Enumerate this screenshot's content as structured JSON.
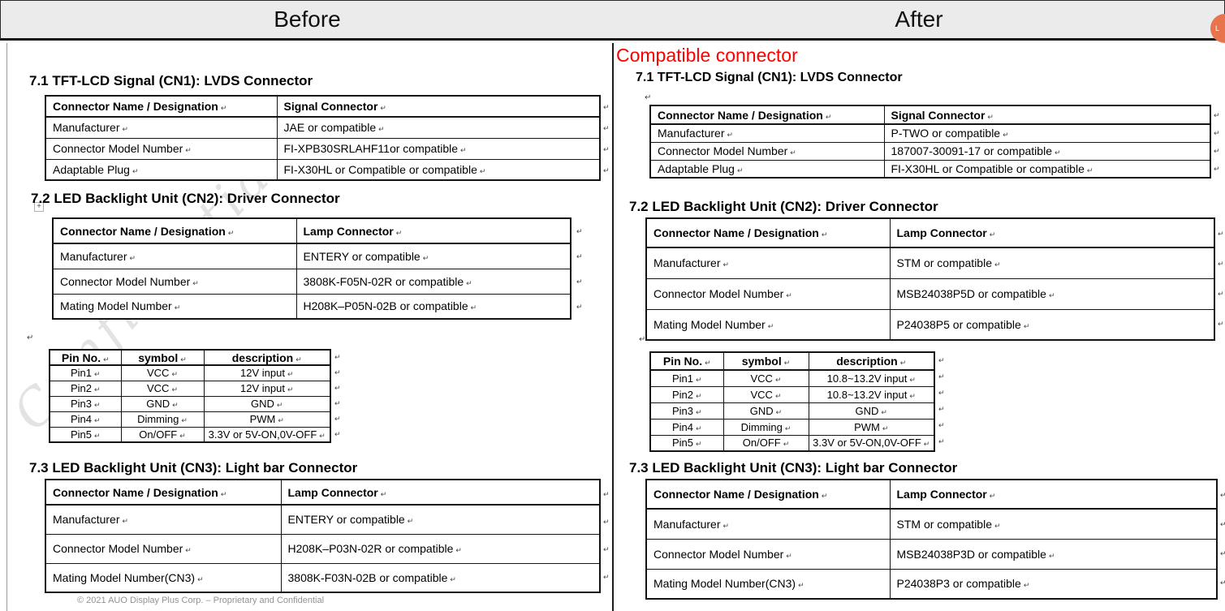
{
  "glyphs": {
    "eol": "↵",
    "handle_plus": "+"
  },
  "colors": {
    "header_bg": "#ebebeb",
    "changed_text_blue": "#2323e8",
    "annotation_red": "#fe0000",
    "floating_button_orange": "#e8744d",
    "watermark_gray": "#c9c9c9"
  },
  "header": {
    "before_label": "Before",
    "after_label": "After",
    "floating_button_label": "L"
  },
  "before": {
    "watermark": "Confidential",
    "footer": "© 2021 AUO Display Plus Corp. – Proprietary and Confidential",
    "section1": {
      "heading": "7.1 TFT-LCD Signal (CN1): LVDS Connector",
      "col1": "Connector Name / Designation",
      "col2": "Signal Connector",
      "rows": [
        {
          "label": "Manufacturer",
          "value": "JAE or compatible"
        },
        {
          "label": "Connector Model Number",
          "value": "FI-XPB30SRLAHF11or compatible"
        },
        {
          "label": "Adaptable Plug",
          "value": "FI-X30HL or Compatible or compatible"
        }
      ]
    },
    "section2": {
      "heading": "7.2 LED Backlight Unit (CN2): Driver Connector",
      "col1": "Connector Name / Designation",
      "col2": "Lamp Connector",
      "rows": [
        {
          "label": "Manufacturer",
          "value": "ENTERY or compatible"
        },
        {
          "label": "Connector Model Number",
          "value": "3808K-F05N-02R or compatible"
        },
        {
          "label": "Mating Model Number",
          "value": "H208K–P05N-02B or compatible"
        }
      ]
    },
    "pin_table": {
      "headers": [
        "Pin No.",
        "symbol",
        "description"
      ],
      "rows": [
        [
          "Pin1",
          "VCC",
          "12V input"
        ],
        [
          "Pin2",
          "VCC",
          "12V input"
        ],
        [
          "Pin3",
          "GND",
          "GND"
        ],
        [
          "Pin4",
          "Dimming",
          "PWM"
        ],
        [
          "Pin5",
          "On/OFF",
          "3.3V or 5V-ON,0V-OFF"
        ]
      ]
    },
    "section3": {
      "heading": "7.3 LED Backlight Unit (CN3): Light bar Connector",
      "col1": "Connector Name / Designation",
      "col2": "Lamp Connector",
      "rows": [
        {
          "label": "Manufacturer",
          "value": "ENTERY or compatible"
        },
        {
          "label": "Connector Model Number",
          "value": "H208K–P03N-02R or compatible"
        },
        {
          "label": "Mating Model Number(CN3)",
          "value": "3808K-F03N-02B or compatible"
        }
      ]
    }
  },
  "after": {
    "annotation": "Compatible connector",
    "section1": {
      "heading": "7.1 TFT-LCD Signal (CN1): LVDS Connector",
      "col1": "Connector Name / Designation",
      "col2": "Signal Connector",
      "rows": [
        {
          "label": "Manufacturer",
          "value": "P-TWO or compatible",
          "changed": false
        },
        {
          "label": "Connector Model Number",
          "value": "187007-30091-17 or compatible",
          "changed": true
        },
        {
          "label": "Adaptable Plug",
          "value": "FI-X30HL or Compatible or compatible",
          "changed": false
        }
      ]
    },
    "section2": {
      "heading": "7.2 LED Backlight Unit (CN2): Driver Connector",
      "col1": "Connector Name / Designation",
      "col2": "Lamp Connector",
      "rows": [
        {
          "label": "Manufacturer",
          "value": "STM or compatible",
          "changed": true
        },
        {
          "label": "Connector Model Number",
          "value": "MSB24038P5D or compatible",
          "changed": true
        },
        {
          "label": "Mating Model Number",
          "value": "P24038P5 or compatible",
          "changed": true
        }
      ]
    },
    "pin_table": {
      "headers": [
        "Pin No.",
        "symbol",
        "description"
      ],
      "rows": [
        [
          "Pin1",
          "VCC",
          "10.8~13.2V input"
        ],
        [
          "Pin2",
          "VCC",
          "10.8~13.2V input"
        ],
        [
          "Pin3",
          "GND",
          "GND"
        ],
        [
          "Pin4",
          "Dimming",
          "PWM"
        ],
        [
          "Pin5",
          "On/OFF",
          "3.3V or 5V-ON,0V-OFF"
        ]
      ]
    },
    "section3": {
      "heading": "7.3 LED Backlight Unit (CN3): Light bar Connector",
      "col1": "Connector Name / Designation",
      "col2": "Lamp Connector",
      "rows": [
        {
          "label": "Manufacturer",
          "value": "STM or compatible",
          "changed": true
        },
        {
          "label": "Connector Model Number",
          "value": "MSB24038P3D or compatible",
          "changed": true
        },
        {
          "label": "Mating Model Number(CN3)",
          "value": "P24038P3 or compatible",
          "changed": true
        }
      ]
    }
  }
}
